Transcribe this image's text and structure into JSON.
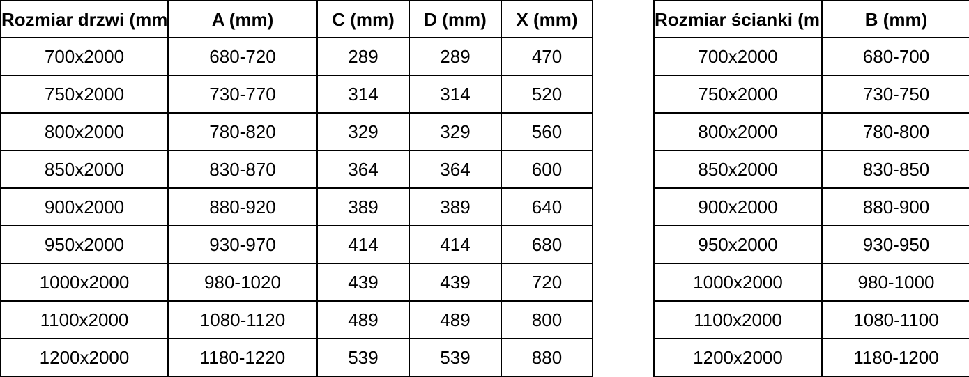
{
  "colors": {
    "border": "#000000",
    "text": "#000000",
    "background": "#ffffff"
  },
  "door_table": {
    "headers": [
      "Rozmiar drzwi (mm)",
      "A (mm)",
      "C (mm)",
      "D (mm)",
      "X (mm)"
    ],
    "rows": [
      [
        "700x2000",
        "680-720",
        "289",
        "289",
        "470"
      ],
      [
        "750x2000",
        "730-770",
        "314",
        "314",
        "520"
      ],
      [
        "800x2000",
        "780-820",
        "329",
        "329",
        "560"
      ],
      [
        "850x2000",
        "830-870",
        "364",
        "364",
        "600"
      ],
      [
        "900x2000",
        "880-920",
        "389",
        "389",
        "640"
      ],
      [
        "950x2000",
        "930-970",
        "414",
        "414",
        "680"
      ],
      [
        "1000x2000",
        "980-1020",
        "439",
        "439",
        "720"
      ],
      [
        "1100x2000",
        "1080-1120",
        "489",
        "489",
        "800"
      ],
      [
        "1200x2000",
        "1180-1220",
        "539",
        "539",
        "880"
      ]
    ]
  },
  "wall_table": {
    "headers": [
      "Rozmiar ścianki (mm)",
      "B (mm)"
    ],
    "rows": [
      [
        "700x2000",
        "680-700"
      ],
      [
        "750x2000",
        "730-750"
      ],
      [
        "800x2000",
        "780-800"
      ],
      [
        "850x2000",
        "830-850"
      ],
      [
        "900x2000",
        "880-900"
      ],
      [
        "950x2000",
        "930-950"
      ],
      [
        "1000x2000",
        "980-1000"
      ],
      [
        "1100x2000",
        "1080-1100"
      ],
      [
        "1200x2000",
        "1180-1200"
      ]
    ]
  }
}
